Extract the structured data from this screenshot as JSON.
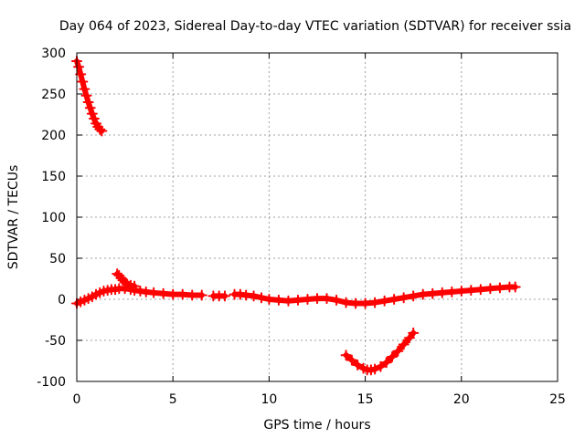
{
  "chart_data": {
    "type": "scatter",
    "title": "Day 064 of 2023, Sidereal Day-to-day VTEC variation (SDTVAR) for receiver ssia",
    "xlabel": "GPS time / hours",
    "ylabel": "SDTVAR / TECUs",
    "xlim": [
      0,
      25
    ],
    "ylim": [
      -100,
      300
    ],
    "xticks": [
      "0",
      "5",
      "10",
      "15",
      "20",
      "25"
    ],
    "yticks": [
      "-100",
      "-50",
      "0",
      "50",
      "100",
      "150",
      "200",
      "250",
      "300"
    ],
    "grid": true,
    "legend": "none",
    "marker": "plus",
    "color": "#ff0000",
    "series": [
      {
        "x": [
          0.0,
          0.1,
          0.2,
          0.3,
          0.4,
          0.5,
          0.6,
          0.7,
          0.8,
          0.9,
          1.0,
          1.1,
          1.2,
          1.3
        ],
        "y": [
          290,
          283,
          274,
          265,
          256,
          248,
          240,
          233,
          226,
          220,
          214,
          210,
          207,
          205
        ]
      },
      {
        "x": [
          0.0,
          0.2,
          0.4,
          0.6,
          0.8,
          1.0,
          1.2,
          1.4,
          1.6,
          1.8,
          2.0,
          2.2,
          2.5,
          2.8,
          3.0,
          3.3,
          3.6,
          4.0,
          4.5,
          5.0,
          5.5,
          6.0,
          6.5
        ],
        "y": [
          -5,
          -3,
          -1,
          1,
          3,
          6,
          8,
          10,
          11,
          12,
          12,
          13,
          13,
          12,
          11,
          10,
          9,
          8,
          7,
          6,
          6,
          5,
          5
        ]
      },
      {
        "x": [
          2.1,
          2.2,
          2.3,
          2.4,
          2.5,
          2.6,
          2.8,
          3.0
        ],
        "y": [
          31,
          29,
          26,
          23,
          21,
          19,
          17,
          16
        ]
      },
      {
        "x": [
          7.1,
          7.4,
          7.7
        ],
        "y": [
          4,
          4,
          4
        ]
      },
      {
        "x": [
          8.2,
          8.5,
          8.8,
          9.2,
          9.6,
          10.0,
          10.5,
          11.0,
          11.5,
          12.0,
          12.5,
          13.0,
          13.5,
          14.0,
          14.5,
          15.0,
          15.5,
          16.0,
          16.5,
          17.0,
          17.5,
          18.0,
          18.5,
          19.0,
          19.5,
          20.0,
          20.5,
          21.0,
          21.5,
          22.0,
          22.5,
          22.8
        ],
        "y": [
          6,
          6,
          5,
          4,
          2,
          0,
          -1,
          -2,
          -1,
          0,
          1,
          1,
          -1,
          -4,
          -5,
          -5,
          -4,
          -2,
          0,
          2,
          4,
          6,
          7,
          8,
          9,
          10,
          11,
          12,
          13,
          14,
          15,
          15
        ]
      },
      {
        "x": [
          14.0,
          14.3,
          14.6,
          14.9,
          15.1,
          15.3,
          15.5,
          15.8,
          16.1,
          16.4,
          16.7,
          17.0,
          17.3,
          17.5
        ],
        "y": [
          -68,
          -74,
          -80,
          -84,
          -86,
          -86,
          -85,
          -82,
          -77,
          -70,
          -63,
          -55,
          -47,
          -41
        ]
      }
    ]
  }
}
